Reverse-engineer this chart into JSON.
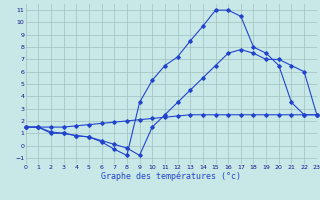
{
  "xlabel": "Graphe des températures (°c)",
  "background_color": "#c8e8e8",
  "grid_color": "#a0c0c0",
  "line_color": "#2244cc",
  "xlim": [
    0,
    23
  ],
  "ylim": [
    -1.5,
    11.5
  ],
  "xticks": [
    0,
    1,
    2,
    3,
    4,
    5,
    6,
    7,
    8,
    9,
    10,
    11,
    12,
    13,
    14,
    15,
    16,
    17,
    18,
    19,
    20,
    21,
    22,
    23
  ],
  "yticks": [
    -1,
    0,
    1,
    2,
    3,
    4,
    5,
    6,
    7,
    8,
    9,
    10,
    11
  ],
  "curve1_x": [
    0,
    1,
    2,
    3,
    4,
    5,
    6,
    7,
    8,
    9,
    10,
    11,
    12,
    13,
    14,
    15,
    16,
    17,
    18,
    19,
    20,
    21,
    22,
    23
  ],
  "curve1_y": [
    1.5,
    1.5,
    1.1,
    1.0,
    0.8,
    0.7,
    0.3,
    -0.3,
    -0.8,
    3.5,
    5.3,
    6.5,
    7.2,
    8.5,
    9.7,
    11.0,
    11.0,
    10.5,
    8.0,
    7.5,
    6.5,
    3.5,
    2.5,
    2.5
  ],
  "curve2_x": [
    0,
    1,
    2,
    3,
    4,
    5,
    6,
    7,
    8,
    9,
    10,
    11,
    12,
    13,
    14,
    15,
    16,
    17,
    18,
    19,
    20,
    21,
    22,
    23
  ],
  "curve2_y": [
    1.5,
    1.5,
    1.0,
    1.0,
    0.8,
    0.7,
    0.4,
    0.1,
    -0.2,
    -0.8,
    1.5,
    2.5,
    3.5,
    4.5,
    5.5,
    6.5,
    7.5,
    7.8,
    7.5,
    7.0,
    7.0,
    6.5,
    6.0,
    2.5
  ],
  "curve3_x": [
    0,
    1,
    2,
    3,
    4,
    5,
    6,
    7,
    8,
    9,
    10,
    11,
    12,
    13,
    14,
    15,
    16,
    17,
    18,
    19,
    20,
    21,
    22,
    23
  ],
  "curve3_y": [
    1.5,
    1.5,
    1.5,
    1.5,
    1.6,
    1.7,
    1.8,
    1.9,
    2.0,
    2.1,
    2.2,
    2.3,
    2.4,
    2.5,
    2.5,
    2.5,
    2.5,
    2.5,
    2.5,
    2.5,
    2.5,
    2.5,
    2.5,
    2.5
  ]
}
